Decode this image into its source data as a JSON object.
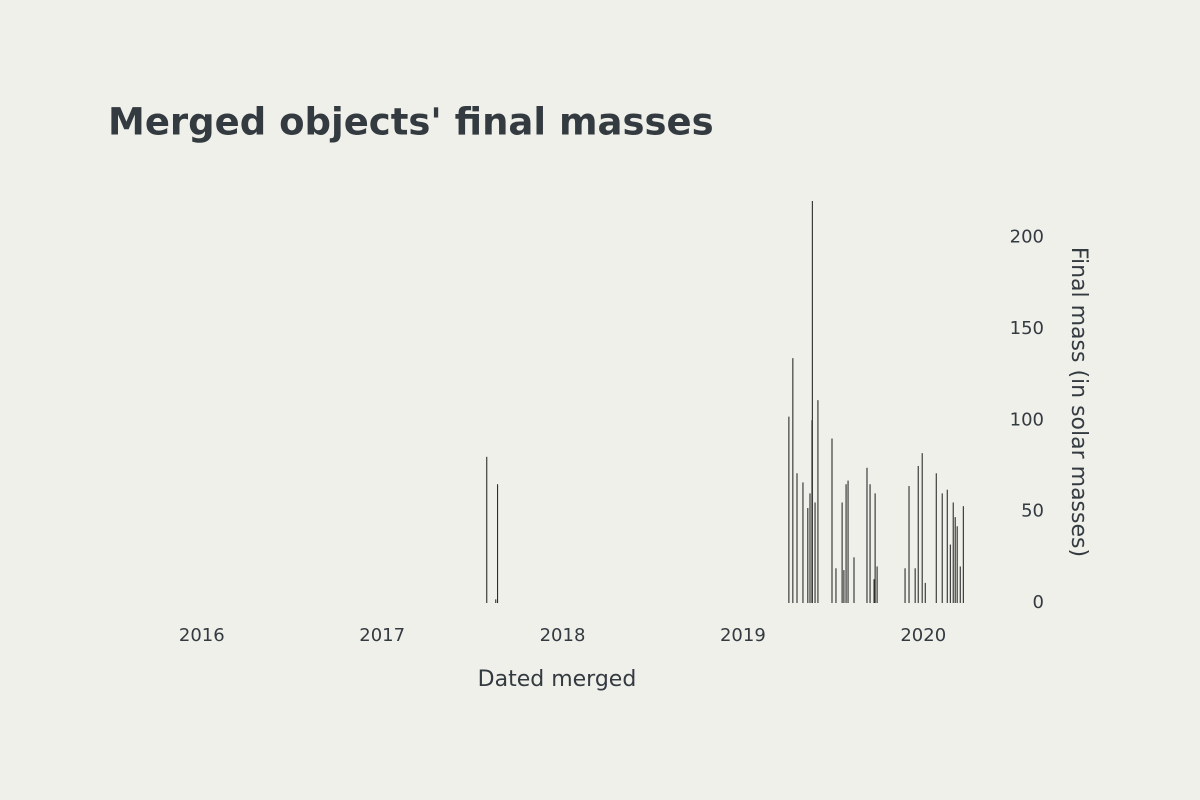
{
  "chart_data": {
    "type": "bar",
    "title": "Merged objects' final masses",
    "xlabel": "Dated merged",
    "ylabel": "Final mass (in solar masses)",
    "x": [
      2017.58,
      2017.63,
      2017.64,
      2019.255,
      2019.277,
      2019.3,
      2019.333,
      2019.36,
      2019.372,
      2019.383,
      2019.385,
      2019.4,
      2019.416,
      2019.494,
      2019.516,
      2019.55,
      2019.56,
      2019.572,
      2019.583,
      2019.616,
      2019.688,
      2019.705,
      2019.727,
      2019.733,
      2019.744,
      2019.899,
      2019.921,
      2019.955,
      2019.972,
      2019.994,
      2020.011,
      2020.072,
      2020.105,
      2020.133,
      2020.15,
      2020.166,
      2020.177,
      2020.188,
      2020.205,
      2020.222
    ],
    "values": [
      80,
      2,
      65,
      102,
      134,
      71,
      66,
      52,
      60,
      100,
      220,
      55,
      111,
      90,
      19,
      55,
      18,
      65,
      67,
      25,
      74,
      65,
      13,
      60,
      20,
      19,
      64,
      19,
      75,
      82,
      11,
      71,
      60,
      62,
      32,
      55,
      47,
      42,
      20,
      53
    ],
    "color": "#1a1a1a",
    "xlim": [
      2015.48,
      2020.37
    ],
    "xticks": [
      2016,
      2017,
      2018,
      2019,
      2020
    ],
    "ylim": [
      0,
      220
    ],
    "yticks": [
      0,
      50,
      100,
      150,
      200
    ],
    "y_axis_side": "right",
    "grid": false
  }
}
